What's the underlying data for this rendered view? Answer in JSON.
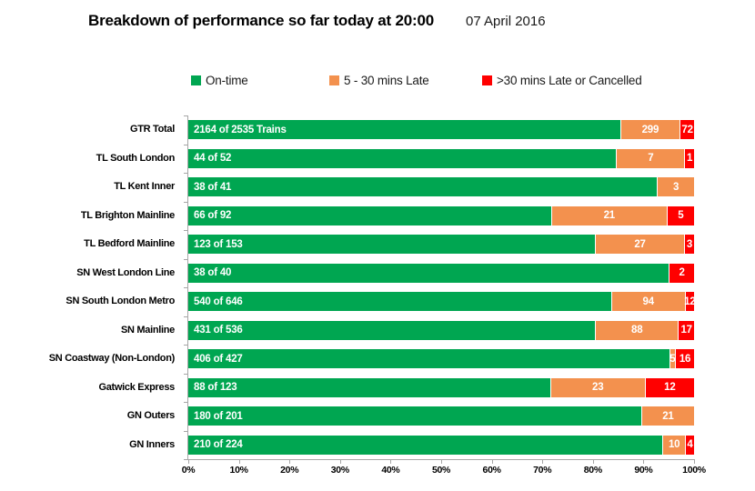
{
  "header": {
    "title": "Breakdown of performance so far today at 20:00",
    "date": "07 April 2016"
  },
  "legend": [
    {
      "label": "On-time",
      "color": "#00A651"
    },
    {
      "label": "5 - 30 mins Late",
      "color": "#F3914E"
    },
    {
      "label": ">30 mins Late or Cancelled",
      "color": "#FF0000"
    }
  ],
  "chart_data": {
    "type": "bar",
    "orientation": "horizontal",
    "stacked": true,
    "title": "Breakdown of performance so far today at 20:00",
    "xlim": [
      0,
      100
    ],
    "x_ticks": [
      "0%",
      "10%",
      "20%",
      "30%",
      "40%",
      "50%",
      "60%",
      "70%",
      "80%",
      "90%",
      "100%"
    ],
    "categories": [
      "GTR Total",
      "TL South London",
      "TL Kent Inner",
      "TL Brighton Mainline",
      "TL Bedford Mainline",
      "SN West London Line",
      "SN South London Metro",
      "SN Mainline",
      "SN Coastway (Non-London)",
      "Gatwick Express",
      "GN Outers",
      "GN Inners"
    ],
    "totals": [
      2535,
      52,
      41,
      92,
      153,
      40,
      646,
      536,
      427,
      123,
      201,
      224
    ],
    "series": [
      {
        "name": "On-time",
        "color": "#00A651",
        "values": [
          2164,
          44,
          38,
          66,
          123,
          38,
          540,
          431,
          406,
          88,
          180,
          210
        ],
        "labels": [
          "2164 of 2535 Trains",
          "44 of 52",
          "38 of 41",
          "66 of 92",
          "123 of 153",
          "38 of 40",
          "540 of 646",
          "431 of 536",
          "406 of 427",
          "88 of 123",
          "180 of 201",
          "210 of 224"
        ]
      },
      {
        "name": "5 - 30 mins Late",
        "color": "#F3914E",
        "values": [
          299,
          7,
          3,
          21,
          27,
          0,
          94,
          88,
          5,
          23,
          21,
          10
        ]
      },
      {
        "name": ">30 mins Late or Cancelled",
        "color": "#FF0000",
        "values": [
          72,
          1,
          0,
          5,
          3,
          2,
          12,
          17,
          16,
          12,
          0,
          4
        ]
      }
    ]
  }
}
